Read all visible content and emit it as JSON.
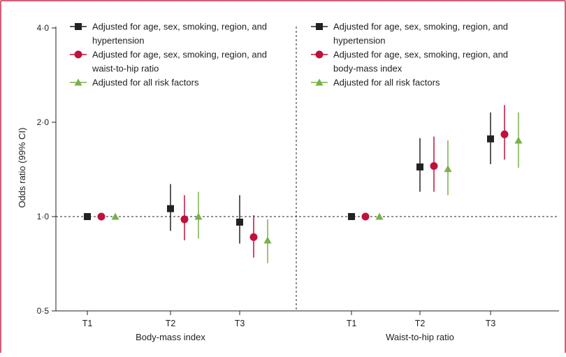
{
  "chart_data": {
    "type": "scatter",
    "ylabel": "Odds ratio (99% CI)",
    "yscale": "log",
    "ylim": [
      0.5,
      4.0
    ],
    "yticks": [
      {
        "value": 0.5,
        "label": "0·5"
      },
      {
        "value": 1.0,
        "label": "1·0"
      },
      {
        "value": 2.0,
        "label": "2·0"
      },
      {
        "value": 4.0,
        "label": "4·0"
      }
    ],
    "reference_line": 1.0,
    "grid": false,
    "colors": {
      "frame": "#c8284f",
      "series1": "#222222",
      "series2": "#c0103c",
      "series3": "#78b04a"
    },
    "panels": [
      {
        "xlabel": "Body-mass index",
        "categories": [
          "T1",
          "T2",
          "T3"
        ],
        "legend_position": "top-left",
        "series": [
          {
            "name": "Adjusted for age, sex, smoking, region, and hypertension",
            "marker": "square",
            "values": [
              1.0,
              1.06,
              0.96
            ],
            "ci_low": [
              1.0,
              0.9,
              0.82
            ],
            "ci_high": [
              1.0,
              1.27,
              1.17
            ]
          },
          {
            "name": "Adjusted for age, sex, smoking, region, and waist-to-hip ratio",
            "marker": "circle",
            "values": [
              1.0,
              0.98,
              0.86
            ],
            "ci_low": [
              1.0,
              0.84,
              0.74
            ],
            "ci_high": [
              1.0,
              1.17,
              1.01
            ]
          },
          {
            "name": "Adjusted for all risk factors",
            "marker": "triangle",
            "values": [
              1.0,
              1.0,
              0.84
            ],
            "ci_low": [
              1.0,
              0.85,
              0.71
            ],
            "ci_high": [
              1.0,
              1.2,
              0.98
            ]
          }
        ]
      },
      {
        "xlabel": "Waist-to-hip ratio",
        "categories": [
          "T1",
          "T2",
          "T3"
        ],
        "legend_position": "top-left",
        "series": [
          {
            "name": "Adjusted for age, sex, smoking, region, and hypertension",
            "marker": "square",
            "values": [
              1.0,
              1.44,
              1.77
            ],
            "ci_low": [
              1.0,
              1.2,
              1.47
            ],
            "ci_high": [
              1.0,
              1.78,
              2.15
            ]
          },
          {
            "name": "Adjusted for age, sex, smoking, region, and body-mass index",
            "marker": "circle",
            "values": [
              1.0,
              1.45,
              1.83
            ],
            "ci_low": [
              1.0,
              1.2,
              1.52
            ],
            "ci_high": [
              1.0,
              1.8,
              2.27
            ]
          },
          {
            "name": "Adjusted for all risk factors",
            "marker": "triangle",
            "values": [
              1.0,
              1.42,
              1.75
            ],
            "ci_low": [
              1.0,
              1.17,
              1.43
            ],
            "ci_high": [
              1.0,
              1.75,
              2.15
            ]
          }
        ]
      }
    ]
  }
}
